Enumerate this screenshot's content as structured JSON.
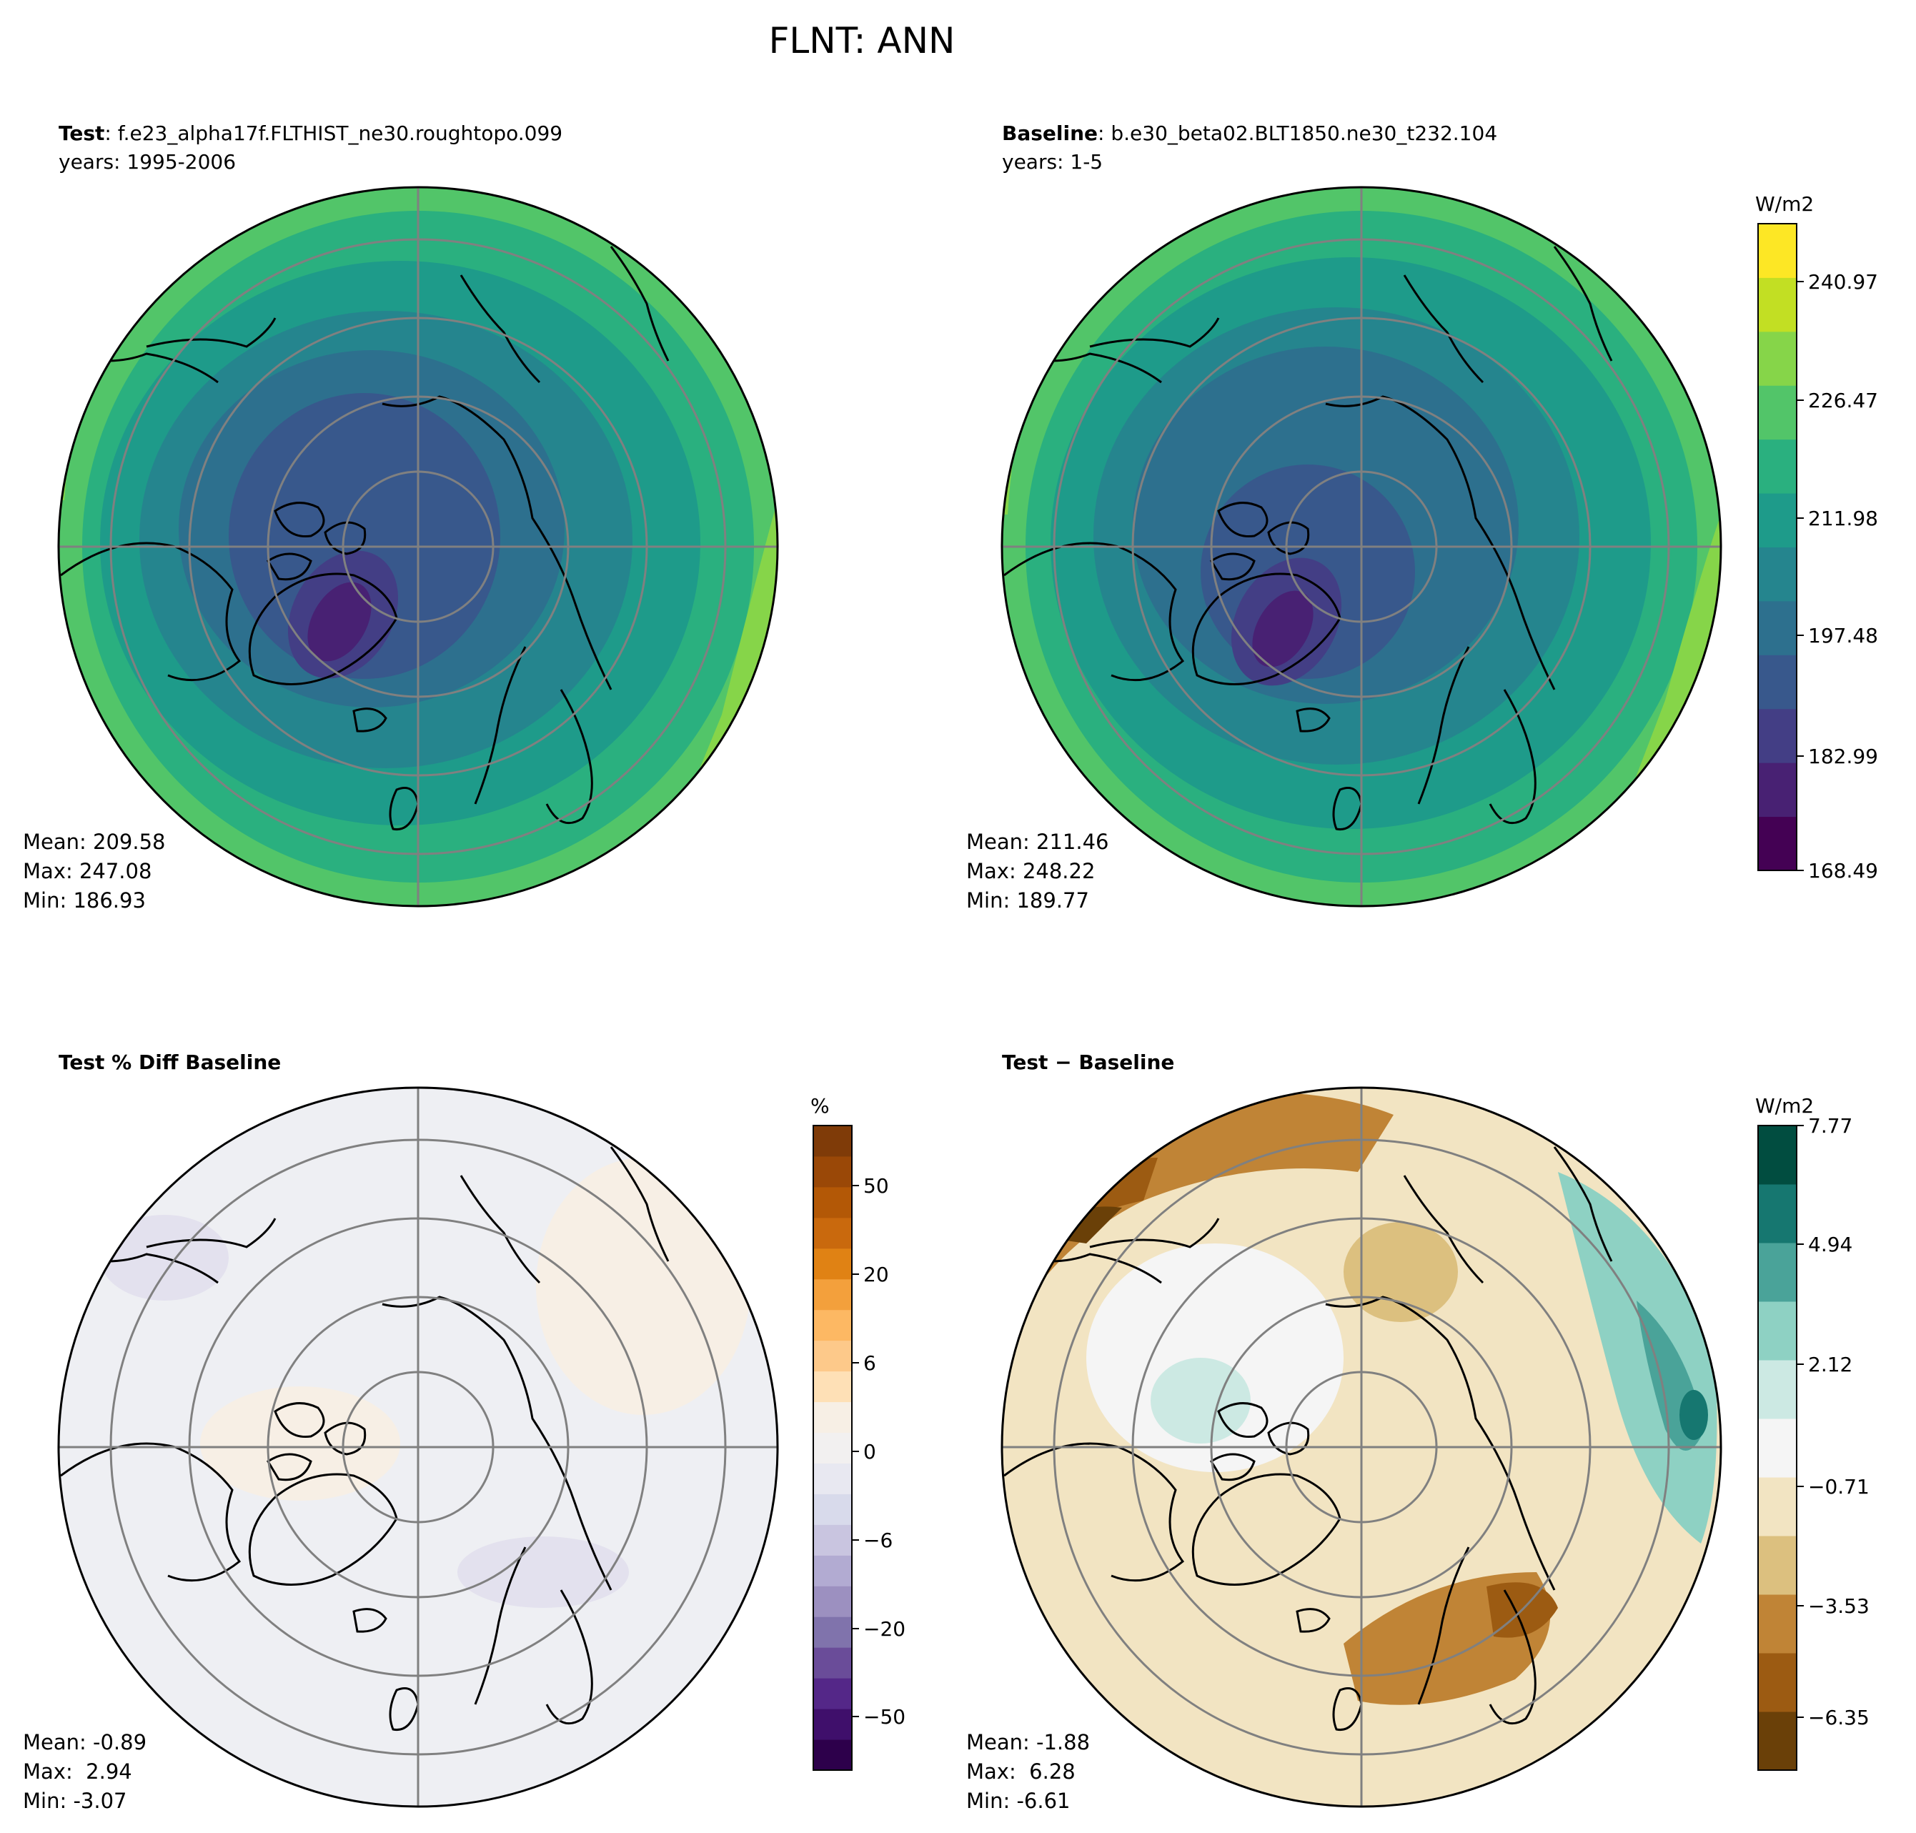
{
  "figure": {
    "title": "FLNT: ANN"
  },
  "panels": [
    {
      "key": "test",
      "title_bold": "Test",
      "title_rest": ": f.e23_alpha17f.FLTHIST_ne30.roughtopo.099",
      "subtitle": "years: 1995-2006",
      "stats": {
        "mean": "Mean: 209.58",
        "max": "Max: 247.08",
        "min": "Min: 186.93"
      },
      "colormap": "viridis"
    },
    {
      "key": "baseline",
      "title_bold": "Baseline",
      "title_rest": ": b.e30_beta02.BLT1850.ne30_t232.104",
      "subtitle": "years: 1-5",
      "stats": {
        "mean": "Mean: 211.46",
        "max": "Max: 248.22",
        "min": "Min: 189.77"
      },
      "colormap": "viridis"
    },
    {
      "key": "pctdiff",
      "title_bold": "Test % Diff Baseline",
      "title_rest": "",
      "subtitle": "",
      "stats": {
        "mean": "Mean: -0.89",
        "max": "Max:  2.94",
        "min": "Min: -3.07"
      },
      "colormap": "PuOr_r"
    },
    {
      "key": "diff",
      "title_bold": "Test − Baseline",
      "title_rest": "",
      "subtitle": "",
      "stats": {
        "mean": "Mean: -1.88",
        "max": "Max:  6.28",
        "min": "Min: -6.61"
      },
      "colormap": "BrBG"
    }
  ],
  "colorbars": [
    {
      "key": "main",
      "unit": "W/m2",
      "ticks": [
        "168.49",
        "182.99",
        "197.48",
        "211.98",
        "226.47",
        "240.97"
      ],
      "colors": [
        "#440154",
        "#482173",
        "#433e85",
        "#38588c",
        "#2d708e",
        "#25858e",
        "#1e9b8a",
        "#2ab07f",
        "#52c569",
        "#86d549",
        "#c2df23",
        "#fde725"
      ]
    },
    {
      "key": "pct",
      "unit": "%",
      "ticks": [
        "−50",
        "−20",
        "−6",
        "0",
        "6",
        "20",
        "50"
      ],
      "colors": [
        "#2d004b",
        "#3f0f6b",
        "#542788",
        "#6a4c99",
        "#8073ac",
        "#9c90c0",
        "#b2abd2",
        "#c9c5e0",
        "#d8daeb",
        "#e8e8f1",
        "#f2f0f0",
        "#f7efe5",
        "#fee0b6",
        "#fdc98a",
        "#fdb863",
        "#f3a03c",
        "#e08214",
        "#c9690d",
        "#b35806",
        "#9a4807",
        "#7f3b08"
      ]
    },
    {
      "key": "diff",
      "unit": "W/m2",
      "ticks": [
        "−6.35",
        "−3.53",
        "−0.71",
        "2.12",
        "4.94",
        "7.77"
      ],
      "colors": [
        "#6a4008",
        "#9c5b12",
        "#c08436",
        "#dcc07f",
        "#f2e4c2",
        "#f5f5f5",
        "#cce9e3",
        "#8ed1c3",
        "#4aa399",
        "#167770",
        "#014d40"
      ]
    }
  ]
}
